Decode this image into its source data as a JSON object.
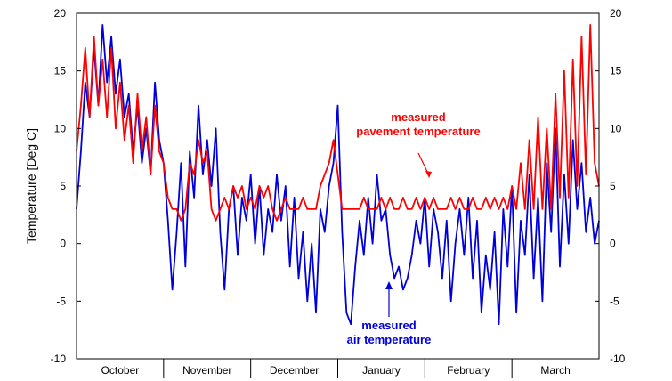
{
  "chart_data": {
    "type": "line",
    "title": "",
    "xlabel": "",
    "ylabel": "Temperature [Deg C]",
    "ylim": [
      -10,
      20
    ],
    "yticks": [
      -10,
      -5,
      0,
      5,
      10,
      15,
      20
    ],
    "yticks_right": true,
    "grid": false,
    "x_unit": "month",
    "xlim": [
      0,
      6
    ],
    "month_labels": [
      "October",
      "November",
      "December",
      "January",
      "February",
      "March"
    ],
    "colors": {
      "pavement": "#ff0000",
      "air": "#0000dd",
      "axis": "#000000"
    },
    "annotations": [
      {
        "lines": [
          "measured",
          "pavement temperature"
        ],
        "color": "#ff0000",
        "series": "pavement"
      },
      {
        "lines": [
          "measured",
          "air temperature"
        ],
        "color": "#0000dd",
        "series": "air"
      }
    ],
    "series": [
      {
        "key": "air",
        "name": "",
        "color": "#0000dd",
        "x": [
          0,
          0.05,
          0.1,
          0.15,
          0.2,
          0.25,
          0.3,
          0.35,
          0.4,
          0.45,
          0.5,
          0.55,
          0.6,
          0.65,
          0.7,
          0.75,
          0.8,
          0.85,
          0.9,
          0.95,
          1.0,
          1.05,
          1.1,
          1.15,
          1.2,
          1.25,
          1.3,
          1.35,
          1.4,
          1.45,
          1.5,
          1.55,
          1.6,
          1.65,
          1.7,
          1.75,
          1.8,
          1.85,
          1.9,
          1.95,
          2.0,
          2.05,
          2.1,
          2.15,
          2.2,
          2.25,
          2.3,
          2.35,
          2.4,
          2.45,
          2.5,
          2.55,
          2.6,
          2.65,
          2.7,
          2.75,
          2.8,
          2.85,
          2.9,
          2.95,
          3.0,
          3.05,
          3.1,
          3.15,
          3.2,
          3.25,
          3.3,
          3.35,
          3.4,
          3.45,
          3.5,
          3.55,
          3.6,
          3.65,
          3.7,
          3.75,
          3.8,
          3.85,
          3.9,
          3.95,
          4.0,
          4.05,
          4.1,
          4.15,
          4.2,
          4.25,
          4.3,
          4.35,
          4.4,
          4.45,
          4.5,
          4.55,
          4.6,
          4.65,
          4.7,
          4.75,
          4.8,
          4.85,
          4.9,
          4.95,
          5.0,
          5.05,
          5.1,
          5.15,
          5.2,
          5.25,
          5.3,
          5.35,
          5.4,
          5.45,
          5.5,
          5.55,
          5.6,
          5.65,
          5.7,
          5.75,
          5.8,
          5.85,
          5.9,
          5.95,
          6.0
        ],
        "values": [
          3,
          8,
          14,
          11,
          17,
          12,
          19,
          14,
          18,
          13,
          16,
          11,
          13,
          8,
          12,
          7,
          10,
          6,
          14,
          9,
          7,
          2,
          -4,
          1,
          7,
          -2,
          8,
          4,
          12,
          6,
          9,
          5,
          10,
          1,
          -4,
          3,
          5,
          -1,
          4,
          2,
          6,
          0,
          5,
          -1,
          3,
          1,
          6,
          2,
          5,
          -2,
          4,
          -3,
          1,
          -5,
          0,
          -6,
          3,
          1,
          5,
          7,
          12,
          1,
          -6,
          -7,
          -2,
          2,
          -1,
          4,
          0,
          6,
          2,
          3,
          -1,
          -3,
          -2,
          -4,
          -3,
          -1,
          2,
          0,
          4,
          -2,
          3,
          1,
          -3,
          2,
          -5,
          0,
          3,
          -1,
          4,
          -3,
          2,
          -6,
          -1,
          -4,
          1,
          -7,
          3,
          -2,
          5,
          -6,
          2,
          -1,
          6,
          -3,
          4,
          -5,
          7,
          1,
          10,
          -2,
          6,
          0,
          9,
          3,
          7,
          1,
          4,
          0,
          2
        ]
      },
      {
        "key": "pavement",
        "name": "",
        "color": "#ff0000",
        "x": [
          0,
          0.05,
          0.1,
          0.15,
          0.2,
          0.25,
          0.3,
          0.35,
          0.4,
          0.45,
          0.5,
          0.55,
          0.6,
          0.65,
          0.7,
          0.75,
          0.8,
          0.85,
          0.9,
          0.95,
          1.0,
          1.05,
          1.1,
          1.15,
          1.2,
          1.25,
          1.3,
          1.35,
          1.4,
          1.45,
          1.5,
          1.55,
          1.6,
          1.65,
          1.7,
          1.75,
          1.8,
          1.85,
          1.9,
          1.95,
          2.0,
          2.05,
          2.1,
          2.15,
          2.2,
          2.25,
          2.3,
          2.35,
          2.4,
          2.45,
          2.5,
          2.55,
          2.6,
          2.65,
          2.7,
          2.75,
          2.8,
          2.85,
          2.9,
          2.95,
          3.0,
          3.05,
          3.1,
          3.15,
          3.2,
          3.25,
          3.3,
          3.35,
          3.4,
          3.45,
          3.5,
          3.55,
          3.6,
          3.65,
          3.7,
          3.75,
          3.8,
          3.85,
          3.9,
          3.95,
          4.0,
          4.05,
          4.1,
          4.15,
          4.2,
          4.25,
          4.3,
          4.35,
          4.4,
          4.45,
          4.5,
          4.55,
          4.6,
          4.65,
          4.7,
          4.75,
          4.8,
          4.85,
          4.9,
          4.95,
          5.0,
          5.05,
          5.1,
          5.15,
          5.2,
          5.25,
          5.3,
          5.35,
          5.4,
          5.45,
          5.5,
          5.55,
          5.6,
          5.65,
          5.7,
          5.75,
          5.8,
          5.85,
          5.9,
          5.95,
          6.0
        ],
        "values": [
          8,
          12,
          17,
          11,
          18,
          12,
          16,
          11,
          17,
          10,
          14,
          9,
          12,
          7,
          13,
          8,
          11,
          6,
          12,
          8,
          7,
          4,
          3,
          3,
          2,
          3,
          7,
          6,
          9,
          7,
          8,
          3,
          2,
          3,
          4,
          3,
          5,
          4,
          5,
          3,
          4,
          3,
          5,
          4,
          5,
          3,
          2,
          3,
          4,
          3,
          3,
          3,
          4,
          3,
          3,
          3,
          5,
          6,
          7,
          9,
          6,
          3,
          3,
          3,
          3,
          3,
          4,
          3,
          3,
          3,
          4,
          3,
          4,
          3,
          3,
          4,
          3,
          3,
          4,
          3,
          4,
          3,
          4,
          3,
          3,
          3,
          4,
          3,
          4,
          3,
          3,
          4,
          3,
          3,
          4,
          3,
          4,
          3,
          4,
          3,
          5,
          3,
          7,
          3,
          9,
          3,
          11,
          3,
          10,
          3,
          13,
          4,
          15,
          4,
          16,
          5,
          18,
          6,
          19,
          7,
          5
        ]
      }
    ]
  }
}
